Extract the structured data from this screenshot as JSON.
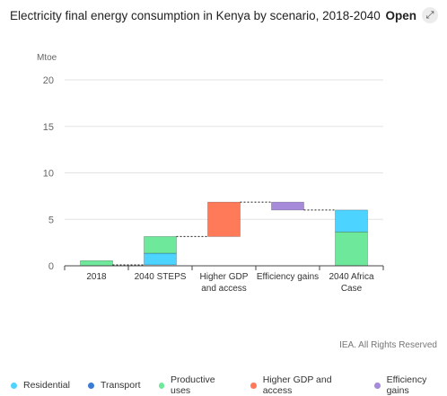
{
  "header": {
    "title": "Electricity final energy consumption in Kenya by scenario, 2018-2040",
    "open_label": "Open",
    "open_icon": "expand-arrow-icon"
  },
  "source": "IEA. All Rights Reserved",
  "colors": {
    "Residential": "#4dd3ff",
    "Transport": "#3a7bd5",
    "Productive uses": "#6ee89a",
    "Higher GDP and access": "#ff7a59",
    "Efficiency gains": "#a78bdb"
  },
  "chart_data": {
    "type": "bar",
    "subtype": "waterfall",
    "title": "Electricity final energy consumption in Kenya by scenario, 2018-2040",
    "unit_label": "Mtoe",
    "ylim": [
      0,
      20
    ],
    "yticks": [
      0,
      5,
      10,
      15,
      20
    ],
    "grid": true,
    "legend_position": "bottom",
    "categories": [
      {
        "label": [
          "2018"
        ],
        "segments": [
          {
            "series": "Productive uses",
            "from": 0,
            "to": 0.55
          }
        ]
      },
      {
        "label": [
          "2040 STEPS"
        ],
        "segments": [
          {
            "series": "Residential",
            "from": 0.1,
            "to": 1.35
          },
          {
            "series": "Productive uses",
            "from": 1.35,
            "to": 3.15
          }
        ]
      },
      {
        "label": [
          "Higher GDP",
          "and access"
        ],
        "segments": [
          {
            "series": "Higher GDP and access",
            "from": 3.15,
            "to": 6.85
          }
        ]
      },
      {
        "label": [
          "Efficiency gains"
        ],
        "segments": [
          {
            "series": "Efficiency gains",
            "from": 6.0,
            "to": 6.85
          }
        ]
      },
      {
        "label": [
          "2040 Africa",
          "Case"
        ],
        "segments": [
          {
            "series": "Productive uses",
            "from": 0,
            "to": 3.65
          },
          {
            "series": "Residential",
            "from": 3.65,
            "to": 6.0
          }
        ]
      }
    ],
    "connectors": [
      {
        "from_cat": 0,
        "to_cat": 1,
        "y": 0.1
      },
      {
        "from_cat": 1,
        "to_cat": 2,
        "y": 3.15
      },
      {
        "from_cat": 2,
        "to_cat": 3,
        "y": 6.85
      },
      {
        "from_cat": 3,
        "to_cat": 4,
        "y": 6.0
      }
    ],
    "legend": [
      "Residential",
      "Transport",
      "Productive uses",
      "Higher GDP and access",
      "Efficiency gains"
    ]
  }
}
